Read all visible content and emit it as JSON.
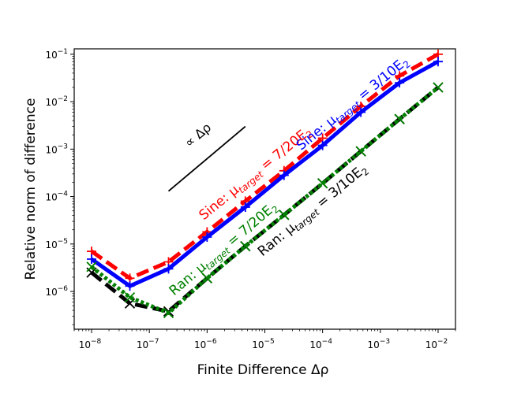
{
  "chart_data": {
    "type": "line",
    "title": "",
    "xlabel": "Finite Difference Δρ",
    "ylabel": "Relative norm of difference",
    "xscale": "log",
    "yscale": "log",
    "xlim": [
      5e-09,
      0.02
    ],
    "ylim": [
      1.6e-07,
      0.13
    ],
    "grid": false,
    "legend": "none",
    "x_ticks": [
      {
        "value": 1e-08,
        "base": "10",
        "exp": "−8"
      },
      {
        "value": 1e-07,
        "base": "10",
        "exp": "−7"
      },
      {
        "value": 1e-06,
        "base": "10",
        "exp": "−6"
      },
      {
        "value": 1e-05,
        "base": "10",
        "exp": "−5"
      },
      {
        "value": 0.0001,
        "base": "10",
        "exp": "−4"
      },
      {
        "value": 0.001,
        "base": "10",
        "exp": "−3"
      },
      {
        "value": 0.01,
        "base": "10",
        "exp": "−2"
      }
    ],
    "y_ticks": [
      {
        "value": 1e-06,
        "base": "10",
        "exp": "−6"
      },
      {
        "value": 1e-05,
        "base": "10",
        "exp": "−5"
      },
      {
        "value": 0.0001,
        "base": "10",
        "exp": "−4"
      },
      {
        "value": 0.001,
        "base": "10",
        "exp": "−3"
      },
      {
        "value": 0.01,
        "base": "10",
        "exp": "−2"
      },
      {
        "value": 0.1,
        "base": "10",
        "exp": "−1"
      }
    ],
    "series": [
      {
        "name": "Sine: μtarget = 7/20E2",
        "color": "#ff0000",
        "style": "dashed",
        "marker": "plus",
        "x": [
          1e-08,
          4.6e-08,
          2.15e-07,
          1e-06,
          4.6e-06,
          2.15e-05,
          0.0001,
          0.00046,
          0.00215,
          0.01
        ],
        "y": [
          7e-06,
          1.9e-06,
          4.2e-06,
          1.8e-05,
          8e-05,
          0.00035,
          0.0017,
          0.008,
          0.035,
          0.1
        ]
      },
      {
        "name": "Sine: μtarget = 3/10E2",
        "color": "#0000ff",
        "style": "solid",
        "marker": "plus",
        "x": [
          1e-08,
          4.6e-08,
          2.15e-07,
          1e-06,
          4.6e-06,
          2.15e-05,
          0.0001,
          0.00046,
          0.00215,
          0.01
        ],
        "y": [
          4.8e-06,
          1.3e-06,
          3e-06,
          1.4e-05,
          6e-05,
          0.00028,
          0.0012,
          0.006,
          0.025,
          0.07
        ]
      },
      {
        "name": "Ran: μtarget = 3/10E2",
        "color": "#000000",
        "style": "dashed",
        "marker": "x",
        "x": [
          1e-08,
          4.6e-08,
          2.15e-07,
          1e-06,
          4.6e-06,
          2.15e-05,
          0.0001,
          0.00046,
          0.00215,
          0.01
        ],
        "y": [
          2.5e-06,
          5.6e-07,
          3.8e-07,
          1.9e-06,
          9e-06,
          4.1e-05,
          0.00019,
          0.0009,
          0.0043,
          0.02
        ]
      },
      {
        "name": "Ran: μtarget = 7/20E2",
        "color": "#008000",
        "style": "dotted",
        "marker": "x",
        "x": [
          1e-08,
          4.6e-08,
          2.15e-07,
          1e-06,
          4.6e-06,
          2.15e-05,
          0.0001,
          0.00046,
          0.00215,
          0.01
        ],
        "y": [
          3.3e-06,
          7.5e-07,
          3.5e-07,
          1.9e-06,
          9e-06,
          4.1e-05,
          0.00019,
          0.0009,
          0.0043,
          0.02
        ]
      }
    ],
    "reference_line": {
      "label": "∝ Δρ",
      "x": [
        2.15e-07,
        4.6e-06
      ],
      "y": [
        0.00013,
        0.003
      ]
    },
    "annotations": [
      {
        "series": 0,
        "prefix": "Sine: μ",
        "sub": "target",
        "suffix": " = 7/20E",
        "sub2": "2",
        "color": "#ff0000"
      },
      {
        "series": 1,
        "prefix": "Sine: μ",
        "sub": "target",
        "suffix": " = 3/10E",
        "sub2": "2",
        "color": "#0000ff"
      },
      {
        "series": 3,
        "prefix": "Ran: μ",
        "sub": "target",
        "suffix": " = 7/20E",
        "sub2": "2",
        "color": "#008000"
      },
      {
        "series": 2,
        "prefix": "Ran: μ",
        "sub": "target",
        "suffix": " = 3/10E",
        "sub2": "2",
        "color": "#000000"
      }
    ]
  }
}
